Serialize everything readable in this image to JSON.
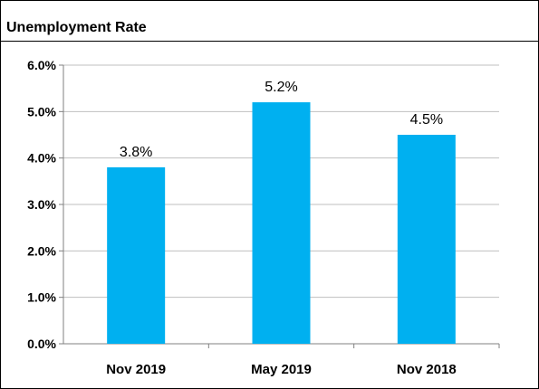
{
  "chart_data": {
    "type": "bar",
    "title": "Unemployment Rate",
    "categories": [
      "Nov 2019",
      "May 2019",
      "Nov 2018"
    ],
    "values": [
      3.8,
      5.2,
      4.5
    ],
    "data_labels": [
      "3.8%",
      "5.2%",
      "4.5%"
    ],
    "xlabel": "",
    "ylabel": "",
    "ylim": [
      0,
      6
    ],
    "yticks": [
      0,
      1,
      2,
      3,
      4,
      5,
      6
    ],
    "ytick_labels": [
      "0.0%",
      "1.0%",
      "2.0%",
      "3.0%",
      "4.0%",
      "5.0%",
      "6.0%"
    ],
    "grid": true,
    "legend": "none",
    "bar_color": "#00b0f0",
    "grid_color": "#bfbfbf"
  }
}
